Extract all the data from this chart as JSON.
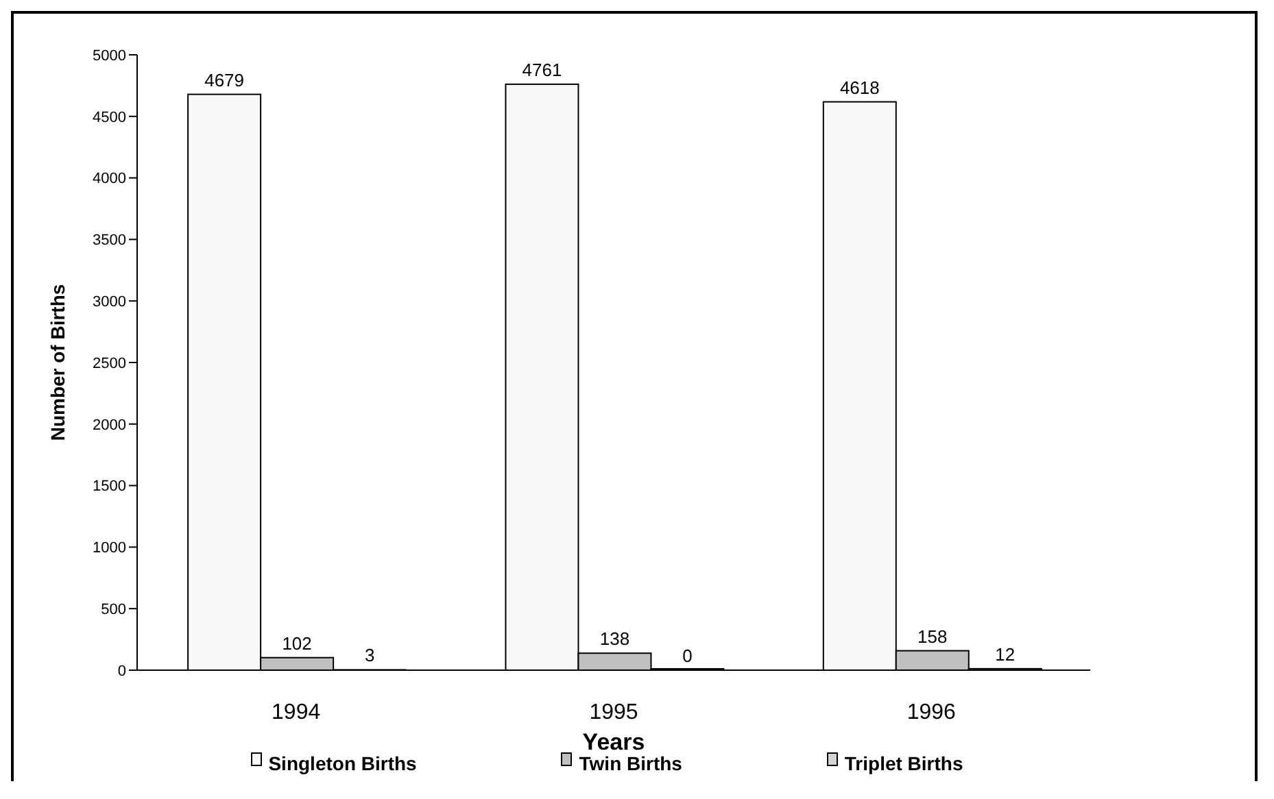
{
  "chart_data": {
    "type": "bar",
    "xlabel": "Years",
    "ylabel": "Number of Births",
    "categories": [
      "1994",
      "1995",
      "1996"
    ],
    "series": [
      {
        "name": "Singleton Births",
        "color": "#f8f8f8",
        "values": [
          4679,
          4761,
          4618
        ]
      },
      {
        "name": "Twin Births",
        "color": "#c0c0c0",
        "values": [
          102,
          138,
          158
        ]
      },
      {
        "name": "Triplet Births",
        "color": "#d4d4d4",
        "values": [
          3,
          0,
          12
        ]
      }
    ],
    "ylim": [
      0,
      5000
    ],
    "yticks": [
      0,
      500,
      1000,
      1500,
      2000,
      2500,
      3000,
      3500,
      4000,
      4500,
      5000
    ],
    "data_labels": true,
    "grid": false,
    "legend": "bottom"
  }
}
